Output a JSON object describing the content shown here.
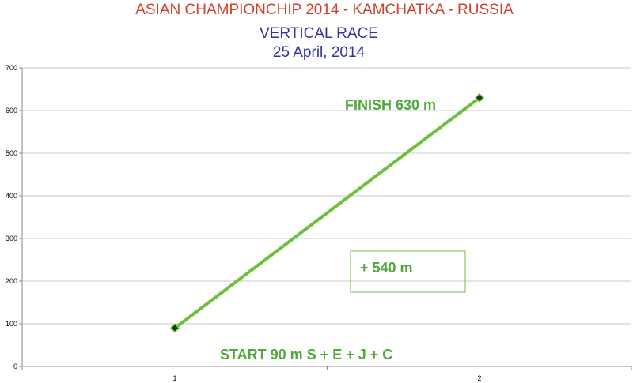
{
  "chart_data": {
    "type": "line",
    "title": "ASIAN CHAMPIONCHIP 2014 - KAMCHATKA - RUSSIA",
    "subtitle_lines": [
      "VERTICAL RACE",
      "25 April, 2014"
    ],
    "x": [
      1,
      2
    ],
    "x_tick_labels": [
      "1",
      "2"
    ],
    "series": [
      {
        "values": [
          90,
          630
        ]
      }
    ],
    "ylim": [
      0,
      700
    ],
    "y_ticks": [
      0,
      100,
      200,
      300,
      400,
      500,
      600,
      700
    ],
    "grid": true,
    "line_color": "#6fbf3f",
    "marker_color": "#1e3a14",
    "annotations": {
      "finish": "FINISH  630 m",
      "gain": "+ 540 m",
      "start": "START 90 m  S + E + J + C"
    },
    "title_colors": {
      "title": "#d0402b",
      "subtitle": "#3333a0",
      "annotation": "#4fa83a"
    }
  }
}
